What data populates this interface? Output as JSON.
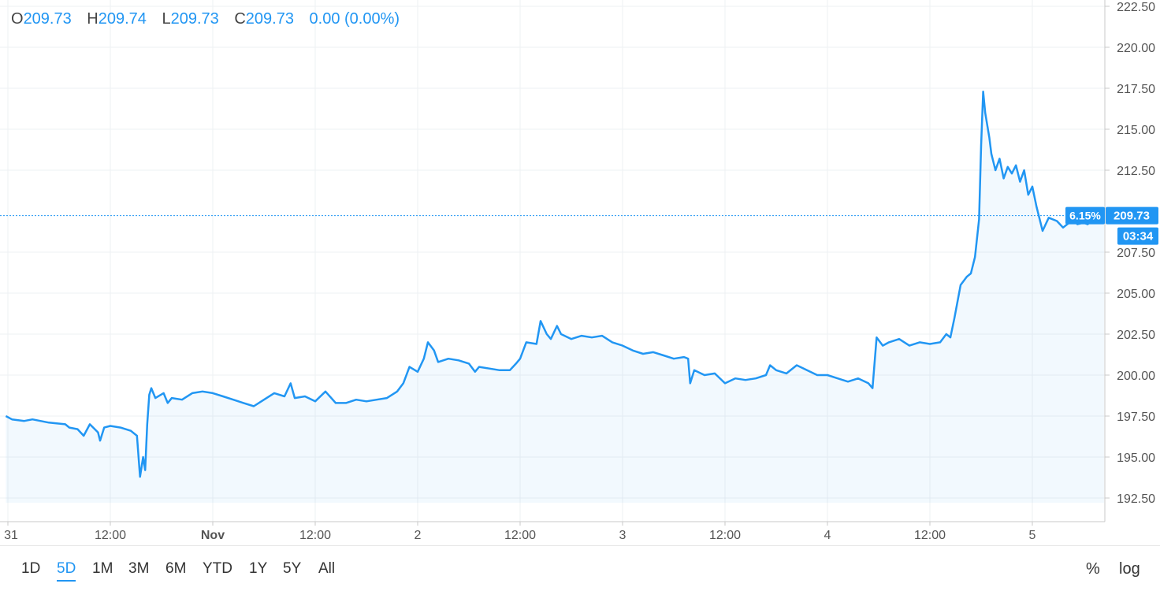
{
  "header": {
    "open_key": "O",
    "open": "209.73",
    "high_key": "H",
    "high": "209.74",
    "low_key": "L",
    "low": "209.73",
    "close_key": "C",
    "close": "209.73",
    "change": "0.00 (0.00%)"
  },
  "chart_data": {
    "type": "area",
    "y_ticks": [
      "222.50",
      "220.00",
      "217.50",
      "215.00",
      "212.50",
      "207.50",
      "205.00",
      "202.50",
      "200.00",
      "197.50",
      "195.00",
      "192.50"
    ],
    "ylim": [
      191.5,
      223
    ],
    "x_ticks": [
      {
        "label": "31",
        "t": 0
      },
      {
        "label": "12:00",
        "t": 0.5
      },
      {
        "label": "Nov",
        "t": 1
      },
      {
        "label": "12:00",
        "t": 1.5
      },
      {
        "label": "2",
        "t": 2
      },
      {
        "label": "12:00",
        "t": 2.5
      },
      {
        "label": "3",
        "t": 3
      },
      {
        "label": "12:00",
        "t": 3.5
      },
      {
        "label": "4",
        "t": 4
      },
      {
        "label": "12:00",
        "t": 4.5
      },
      {
        "label": "5",
        "t": 5
      }
    ],
    "last_price_label": "209.73",
    "last_price": 209.73,
    "time_label": "03:34",
    "percent_label": "6.15%",
    "color": "#2196f3",
    "series": [
      {
        "values": [
          [
            -0.01,
            197.5
          ],
          [
            0.02,
            197.3
          ],
          [
            0.08,
            197.2
          ],
          [
            0.12,
            197.3
          ],
          [
            0.2,
            197.1
          ],
          [
            0.28,
            197.0
          ],
          [
            0.3,
            196.8
          ],
          [
            0.34,
            196.7
          ],
          [
            0.37,
            196.3
          ],
          [
            0.4,
            197.0
          ],
          [
            0.44,
            196.5
          ],
          [
            0.45,
            196.0
          ],
          [
            0.47,
            196.8
          ],
          [
            0.5,
            196.9
          ],
          [
            0.55,
            196.8
          ],
          [
            0.6,
            196.6
          ],
          [
            0.63,
            196.3
          ],
          [
            0.645,
            193.8
          ],
          [
            0.66,
            195.0
          ],
          [
            0.67,
            194.2
          ],
          [
            0.68,
            197.0
          ],
          [
            0.69,
            198.8
          ],
          [
            0.7,
            199.2
          ],
          [
            0.72,
            198.6
          ],
          [
            0.76,
            198.9
          ],
          [
            0.78,
            198.3
          ],
          [
            0.8,
            198.6
          ],
          [
            0.85,
            198.5
          ],
          [
            0.9,
            198.9
          ],
          [
            0.95,
            199.0
          ],
          [
            1.0,
            198.9
          ],
          [
            1.05,
            198.7
          ],
          [
            1.1,
            198.5
          ],
          [
            1.15,
            198.3
          ],
          [
            1.2,
            198.1
          ],
          [
            1.25,
            198.5
          ],
          [
            1.3,
            198.9
          ],
          [
            1.35,
            198.7
          ],
          [
            1.38,
            199.5
          ],
          [
            1.4,
            198.6
          ],
          [
            1.45,
            198.7
          ],
          [
            1.5,
            198.4
          ],
          [
            1.55,
            199.0
          ],
          [
            1.6,
            198.3
          ],
          [
            1.65,
            198.3
          ],
          [
            1.7,
            198.5
          ],
          [
            1.75,
            198.4
          ],
          [
            1.8,
            198.5
          ],
          [
            1.85,
            198.6
          ],
          [
            1.9,
            199.0
          ],
          [
            1.93,
            199.5
          ],
          [
            1.96,
            200.5
          ],
          [
            2.0,
            200.2
          ],
          [
            2.03,
            201.0
          ],
          [
            2.05,
            202.0
          ],
          [
            2.08,
            201.5
          ],
          [
            2.1,
            200.8
          ],
          [
            2.15,
            201.0
          ],
          [
            2.2,
            200.9
          ],
          [
            2.25,
            200.7
          ],
          [
            2.28,
            200.2
          ],
          [
            2.3,
            200.5
          ],
          [
            2.35,
            200.4
          ],
          [
            2.4,
            200.3
          ],
          [
            2.45,
            200.3
          ],
          [
            2.48,
            200.7
          ],
          [
            2.5,
            201.0
          ],
          [
            2.53,
            202.0
          ],
          [
            2.58,
            201.9
          ],
          [
            2.6,
            203.3
          ],
          [
            2.63,
            202.5
          ],
          [
            2.65,
            202.2
          ],
          [
            2.68,
            203.0
          ],
          [
            2.7,
            202.5
          ],
          [
            2.75,
            202.2
          ],
          [
            2.8,
            202.4
          ],
          [
            2.85,
            202.3
          ],
          [
            2.9,
            202.4
          ],
          [
            2.95,
            202.0
          ],
          [
            3.0,
            201.8
          ],
          [
            3.05,
            201.5
          ],
          [
            3.1,
            201.3
          ],
          [
            3.15,
            201.4
          ],
          [
            3.2,
            201.2
          ],
          [
            3.25,
            201.0
          ],
          [
            3.3,
            201.1
          ],
          [
            3.32,
            201.0
          ],
          [
            3.33,
            199.5
          ],
          [
            3.35,
            200.3
          ],
          [
            3.4,
            200.0
          ],
          [
            3.45,
            200.1
          ],
          [
            3.5,
            199.5
          ],
          [
            3.55,
            199.8
          ],
          [
            3.6,
            199.7
          ],
          [
            3.65,
            199.8
          ],
          [
            3.7,
            200.0
          ],
          [
            3.72,
            200.6
          ],
          [
            3.75,
            200.3
          ],
          [
            3.8,
            200.1
          ],
          [
            3.85,
            200.6
          ],
          [
            3.9,
            200.3
          ],
          [
            3.95,
            200.0
          ],
          [
            4.0,
            200.0
          ],
          [
            4.05,
            199.8
          ],
          [
            4.1,
            199.6
          ],
          [
            4.15,
            199.8
          ],
          [
            4.2,
            199.5
          ],
          [
            4.22,
            199.2
          ],
          [
            4.24,
            202.3
          ],
          [
            4.27,
            201.8
          ],
          [
            4.3,
            202.0
          ],
          [
            4.35,
            202.2
          ],
          [
            4.4,
            201.8
          ],
          [
            4.45,
            202.0
          ],
          [
            4.5,
            201.9
          ],
          [
            4.55,
            202.0
          ],
          [
            4.58,
            202.5
          ],
          [
            4.6,
            202.3
          ],
          [
            4.62,
            203.5
          ],
          [
            4.65,
            205.5
          ],
          [
            4.68,
            206.0
          ],
          [
            4.7,
            206.2
          ],
          [
            4.72,
            207.2
          ],
          [
            4.74,
            209.5
          ],
          [
            4.75,
            214.0
          ],
          [
            4.76,
            217.3
          ],
          [
            4.77,
            216.0
          ],
          [
            4.79,
            214.5
          ],
          [
            4.8,
            213.5
          ],
          [
            4.82,
            212.5
          ],
          [
            4.84,
            213.2
          ],
          [
            4.86,
            212.0
          ],
          [
            4.88,
            212.7
          ],
          [
            4.9,
            212.3
          ],
          [
            4.92,
            212.8
          ],
          [
            4.94,
            211.8
          ],
          [
            4.96,
            212.5
          ],
          [
            4.98,
            211.0
          ],
          [
            5.0,
            211.5
          ],
          [
            5.02,
            210.3
          ],
          [
            5.04,
            209.3
          ],
          [
            5.05,
            208.8
          ],
          [
            5.08,
            209.6
          ],
          [
            5.12,
            209.4
          ],
          [
            5.15,
            209.0
          ],
          [
            5.18,
            209.3
          ],
          [
            5.2,
            209.5
          ],
          [
            5.22,
            209.2
          ],
          [
            5.25,
            209.3
          ],
          [
            5.27,
            209.2
          ],
          [
            5.3,
            209.6
          ],
          [
            5.33,
            209.7
          ],
          [
            5.35,
            209.73
          ]
        ]
      }
    ]
  },
  "toolbar": {
    "ranges": [
      "1D",
      "5D",
      "1M",
      "3M",
      "6M",
      "YTD",
      "1Y",
      "5Y",
      "All"
    ],
    "active_range": "5D",
    "percent": "%",
    "log": "log"
  }
}
